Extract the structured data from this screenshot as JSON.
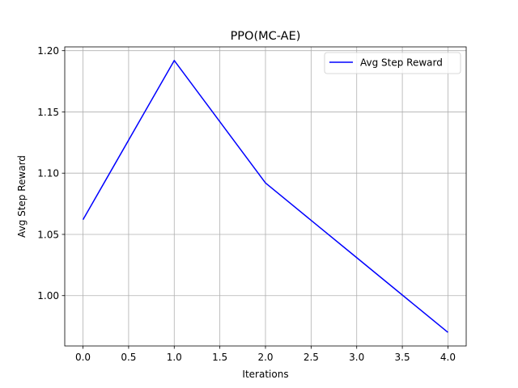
{
  "chart_data": {
    "type": "line",
    "title": "PPO(MC-AE)",
    "xlabel": "Iterations",
    "ylabel": "Avg Step Reward",
    "x": [
      0,
      1,
      2,
      3,
      4
    ],
    "series": [
      {
        "name": "Avg Step Reward",
        "values": [
          1.062,
          1.192,
          1.092,
          1.031,
          0.97
        ],
        "color": "#0000ff"
      }
    ],
    "xlim": [
      -0.2,
      4.2
    ],
    "ylim": [
      0.9589,
      1.2031
    ],
    "xticks": [
      0.0,
      0.5,
      1.0,
      1.5,
      2.0,
      2.5,
      3.0,
      3.5,
      4.0
    ],
    "xtick_labels": [
      "0.0",
      "0.5",
      "1.0",
      "1.5",
      "2.0",
      "2.5",
      "3.0",
      "3.5",
      "4.0"
    ],
    "yticks": [
      1.0,
      1.05,
      1.1,
      1.15,
      1.2
    ],
    "ytick_labels": [
      "1.00",
      "1.05",
      "1.10",
      "1.15",
      "1.20"
    ],
    "grid": true,
    "legend_position": "top-right"
  }
}
